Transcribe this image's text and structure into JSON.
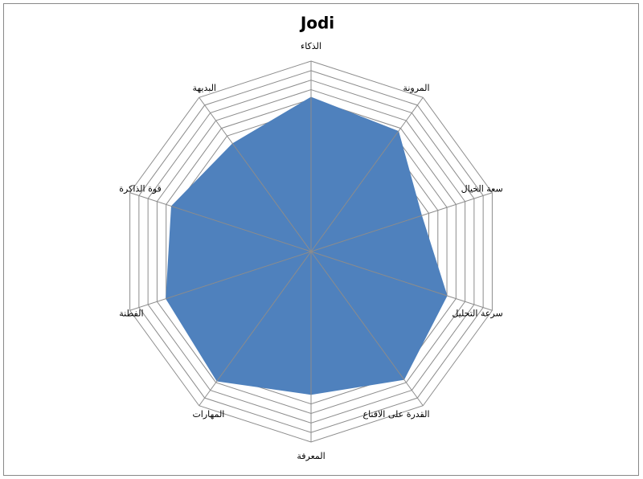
{
  "chart_data": {
    "type": "radar",
    "title": "Jodi",
    "categories": [
      "الذكاء",
      "المرونة",
      "سعة الخيال",
      "سرعة التحليل",
      "القدرة على الاقناع",
      "المعرفة",
      "المهارات",
      "الفطنة",
      "قوة الذاكرة",
      "البديهة"
    ],
    "values": [
      81,
      78,
      61,
      75,
      83,
      75,
      84,
      80,
      77,
      70
    ],
    "color": "#4f81bd",
    "ylim": [
      0,
      100
    ],
    "yticks": [
      0,
      5,
      10,
      15,
      20,
      25,
      30,
      35,
      40,
      45,
      50,
      55,
      60,
      65,
      70,
      75,
      80,
      85,
      90,
      95,
      100
    ],
    "grid": true
  }
}
